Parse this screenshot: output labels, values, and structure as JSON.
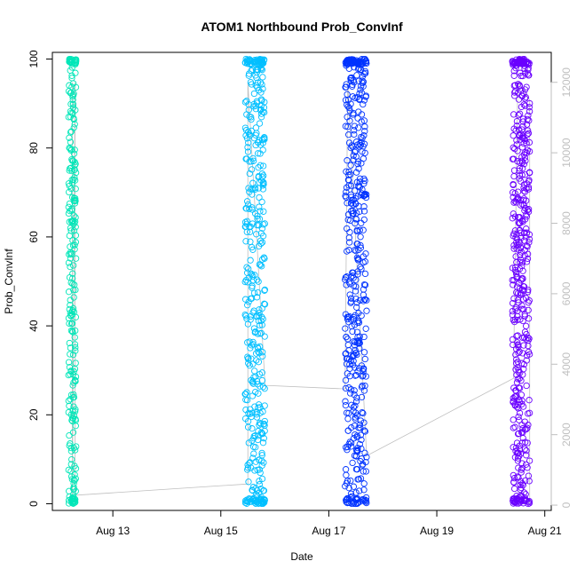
{
  "chart_data": {
    "type": "scatter",
    "title": "ATOM1 Northbound Prob_ConvInf",
    "xlabel": "Date",
    "ylabel": "Prob_ConvInf",
    "x_ticks": [
      "Aug 13",
      "Aug 15",
      "Aug 17",
      "Aug 19",
      "Aug 21"
    ],
    "x_tick_days": [
      13,
      15,
      17,
      19,
      21
    ],
    "xlim": [
      11.88,
      21.12
    ],
    "ylim": [
      -1.5,
      101.5
    ],
    "y_ticks": [
      0,
      20,
      40,
      60,
      80,
      100
    ],
    "y2_ticks": [
      0,
      2000,
      4000,
      6000,
      8000,
      10000,
      12000
    ],
    "y2lim": [
      -150,
      12850
    ],
    "secondary_axis_color": "#bfbfbf",
    "line_color": "#bfbfbf",
    "legend": "none",
    "grid": false,
    "series": [
      {
        "x_range": [
          12.18,
          12.32
        ],
        "y_range": [
          0,
          100
        ],
        "count": 260,
        "color": "#00e6b8"
      },
      {
        "x_range": [
          15.45,
          15.82
        ],
        "y_range": [
          0,
          100
        ],
        "count": 430,
        "color": "#00bfff"
      },
      {
        "x_range": [
          17.3,
          17.7
        ],
        "y_range": [
          0,
          100
        ],
        "count": 480,
        "color": "#0033ff"
      },
      {
        "x_range": [
          20.4,
          20.72
        ],
        "y_range": [
          0,
          100
        ],
        "count": 480,
        "color": "#6a00ff"
      }
    ],
    "connecting_line_approx": [
      {
        "x": 12.25,
        "y": 12000
      },
      {
        "x": 12.25,
        "y": 0
      },
      {
        "x": 12.3,
        "y": 12000
      },
      {
        "x": 12.3,
        "y": 280
      },
      {
        "x": 15.5,
        "y": 600
      },
      {
        "x": 15.5,
        "y": 12000
      },
      {
        "x": 15.82,
        "y": 3400
      },
      {
        "x": 17.3,
        "y": 3300
      },
      {
        "x": 17.35,
        "y": 12000
      },
      {
        "x": 17.7,
        "y": 1400
      },
      {
        "x": 20.42,
        "y": 3600
      },
      {
        "x": 20.5,
        "y": 12000
      },
      {
        "x": 20.72,
        "y": 11500
      },
      {
        "x": 20.72,
        "y": 0
      }
    ]
  }
}
